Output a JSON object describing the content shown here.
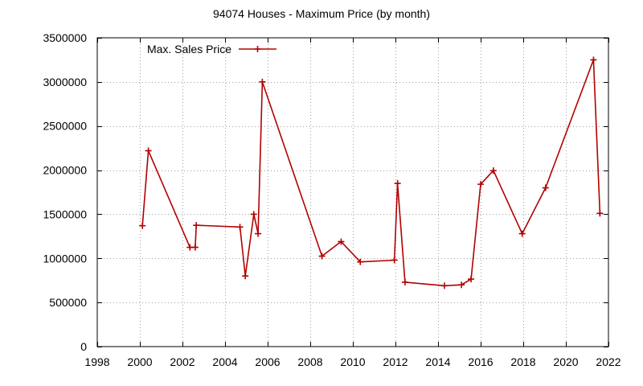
{
  "chart_data": {
    "type": "line",
    "title": "94074 Houses - Maximum Price (by month)",
    "xlabel": "",
    "ylabel": "",
    "xlim": [
      1998,
      2022
    ],
    "ylim": [
      0,
      3500000
    ],
    "x_ticks": [
      "1998",
      "2000",
      "2002",
      "2004",
      "2006",
      "2008",
      "2010",
      "2012",
      "2014",
      "2016",
      "2018",
      "2020",
      "2022"
    ],
    "y_ticks": [
      "0",
      "500000",
      "1000000",
      "1500000",
      "2000000",
      "2500000",
      "3000000",
      "3500000"
    ],
    "grid": true,
    "legend_position": "top-left",
    "series": [
      {
        "name": "Max. Sales Price",
        "color": "#b30000",
        "x": [
          2000.12,
          2000.4,
          2002.35,
          2002.6,
          2002.65,
          2004.7,
          2004.95,
          2005.35,
          2005.55,
          2005.75,
          2008.55,
          2009.45,
          2010.35,
          2011.95,
          2012.1,
          2012.45,
          2014.3,
          2015.1,
          2015.55,
          2016.0,
          2016.6,
          2017.95,
          2019.05,
          2021.3,
          2021.6
        ],
        "y": [
          1370000,
          2220000,
          1125000,
          1125000,
          1375000,
          1355000,
          800000,
          1500000,
          1280000,
          3000000,
          1025000,
          1190000,
          960000,
          980000,
          1850000,
          730000,
          690000,
          700000,
          765000,
          1840000,
          1995000,
          1280000,
          1800000,
          3250000,
          1510000
        ]
      }
    ]
  }
}
